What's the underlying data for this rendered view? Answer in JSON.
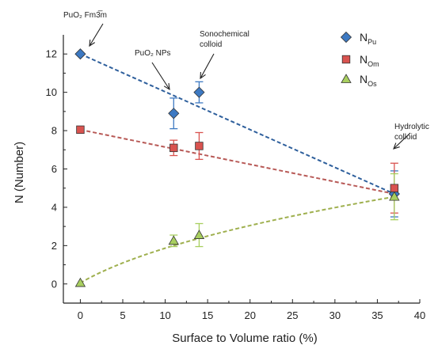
{
  "chart_data": {
    "type": "scatter",
    "xlabel": "Surface to Volume ratio (%)",
    "ylabel": "N (Number)",
    "xlim": [
      -2,
      40
    ],
    "ylim": [
      -1,
      13
    ],
    "x_ticks": [
      0,
      5,
      10,
      15,
      20,
      25,
      30,
      35,
      40
    ],
    "y_ticks": [
      0,
      2,
      4,
      6,
      8,
      10,
      12
    ],
    "grid": false,
    "legend_position": "top-right",
    "series": [
      {
        "name": "N",
        "subscript": "Pu",
        "marker": "diamond",
        "color": "#3d79c2",
        "points": [
          {
            "x": 0,
            "y": 12,
            "err": 0
          },
          {
            "x": 11,
            "y": 8.9,
            "err": 0.8
          },
          {
            "x": 14,
            "y": 10.0,
            "err": 0.55
          },
          {
            "x": 37,
            "y": 4.7,
            "err": 1.2
          }
        ],
        "trend": [
          [
            0,
            12
          ],
          [
            37,
            4.7
          ]
        ],
        "trend_color": "#2e5f9c"
      },
      {
        "name": "N",
        "subscript": "Om",
        "marker": "square",
        "color": "#d9534f",
        "points": [
          {
            "x": 0,
            "y": 8.05,
            "err": 0
          },
          {
            "x": 11,
            "y": 7.1,
            "err": 0.4
          },
          {
            "x": 14,
            "y": 7.2,
            "err": 0.7
          },
          {
            "x": 37,
            "y": 5.0,
            "err": 1.3
          }
        ],
        "trend": [
          [
            0,
            8.05
          ],
          [
            37,
            4.7
          ]
        ],
        "trend_color": "#b85a57"
      },
      {
        "name": "N",
        "subscript": "Os",
        "marker": "triangle",
        "color": "#a8cf5f",
        "points": [
          {
            "x": 0,
            "y": 0.05,
            "err": 0
          },
          {
            "x": 11,
            "y": 2.25,
            "err": 0.3
          },
          {
            "x": 14,
            "y": 2.55,
            "err": 0.6
          },
          {
            "x": 37,
            "y": 4.55,
            "err": 1.2
          }
        ],
        "trend_curve": true,
        "trend_color": "#9fb04f"
      }
    ],
    "annotations": [
      {
        "text": "PuO₂ Fm3̅m",
        "lines": [
          "PuO₂ Fm3̅m"
        ],
        "x": 0,
        "y": 12
      },
      {
        "text": "PuO₂ NPs",
        "lines": [
          "PuO₂ NPs"
        ],
        "x": 11,
        "y": 9.7
      },
      {
        "text": "Sonochemical colloid",
        "lines": [
          "Sonochemical",
          "colloid"
        ],
        "x": 14,
        "y": 10.6
      },
      {
        "text": "Hydrolytic colloid",
        "lines": [
          "Hydrolytic",
          "colloid"
        ],
        "x": 37,
        "y": 6.3
      }
    ]
  }
}
